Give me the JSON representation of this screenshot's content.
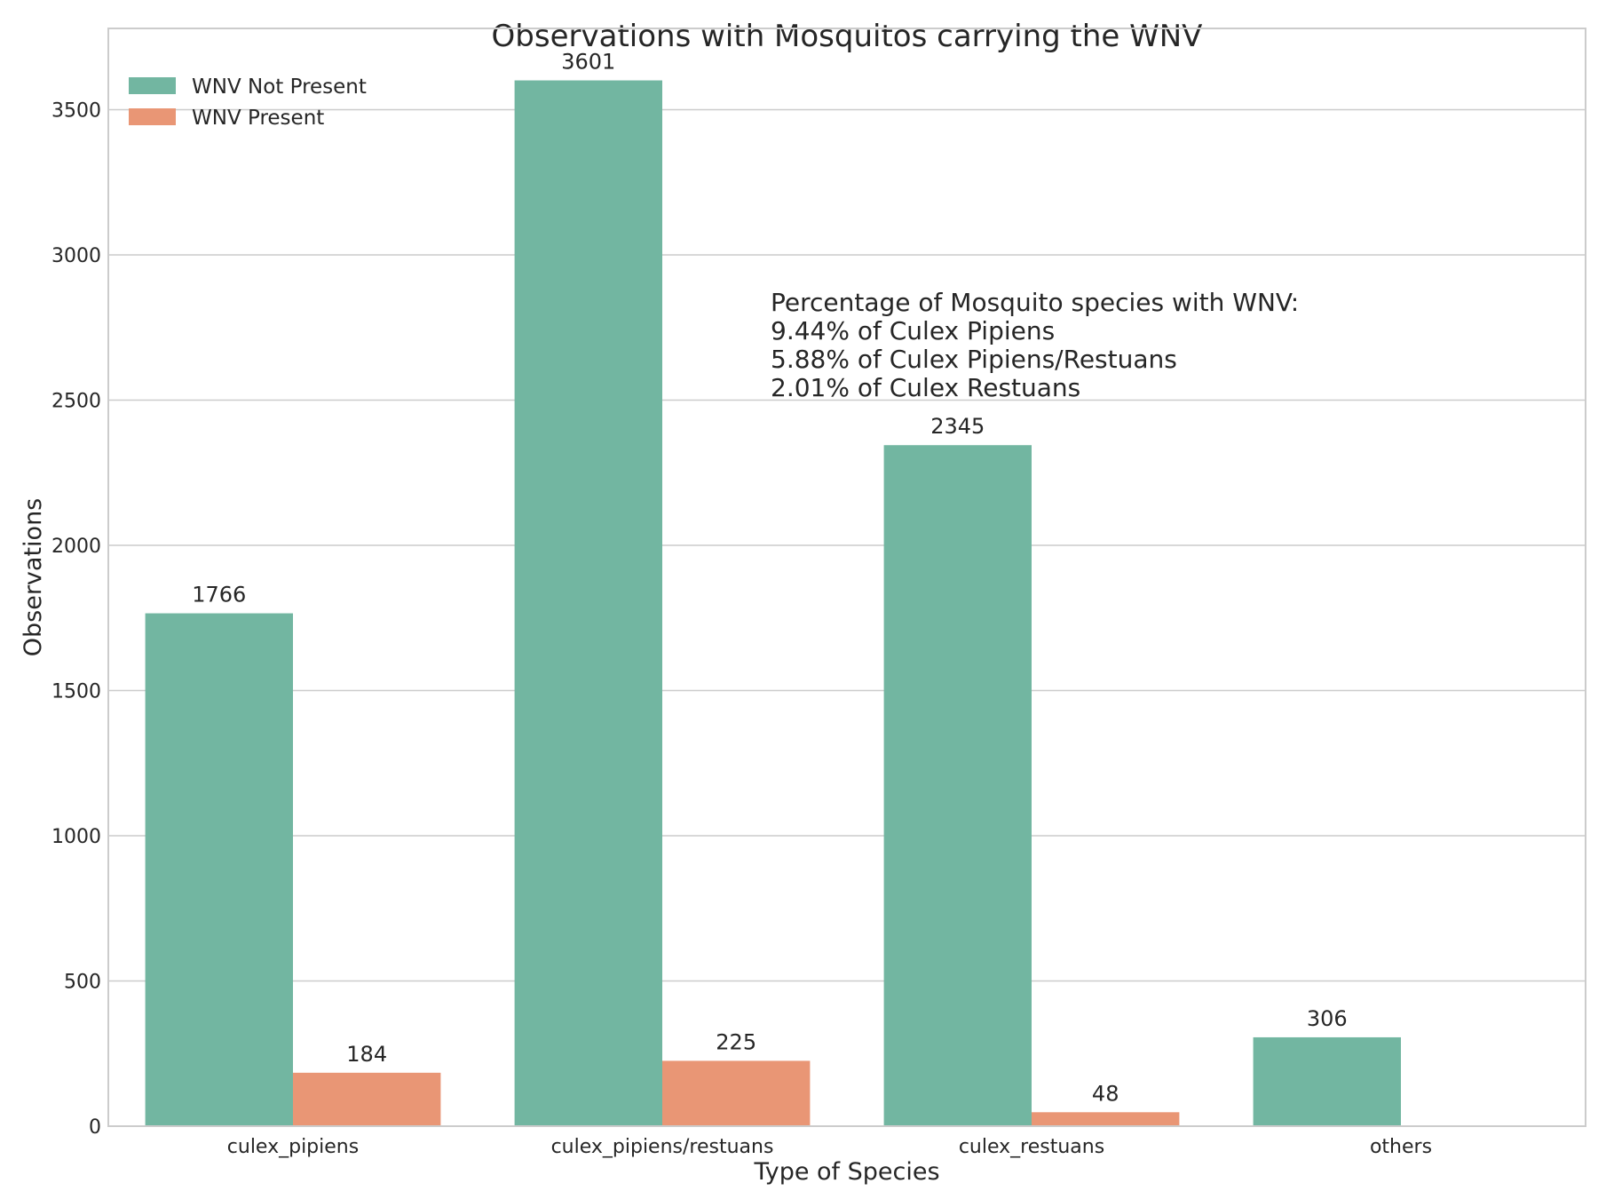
{
  "chart_data": {
    "type": "bar",
    "title": "Observations with Mosquitos carrying the WNV",
    "xlabel": "Type of Species",
    "ylabel": "Observations",
    "categories": [
      "culex_pipiens",
      "culex_pipiens/restuans",
      "culex_restuans",
      "others"
    ],
    "series": [
      {
        "name": "WNV Not Present",
        "color": "#72b6a1",
        "values": [
          1766,
          3601,
          2345,
          306
        ]
      },
      {
        "name": "WNV Present",
        "color": "#e99675",
        "values": [
          184,
          225,
          48,
          null
        ]
      }
    ],
    "ylim": [
      0,
      3780
    ],
    "yticks": [
      0,
      500,
      1000,
      1500,
      2000,
      2500,
      3000,
      3500
    ],
    "grid": true,
    "legend_position": "top-left",
    "annotation": [
      "Percentage of Mosquito species with WNV:",
      "9.44% of Culex Pipiens",
      "5.88% of Culex Pipiens/Restuans",
      "2.01% of Culex Restuans"
    ]
  }
}
